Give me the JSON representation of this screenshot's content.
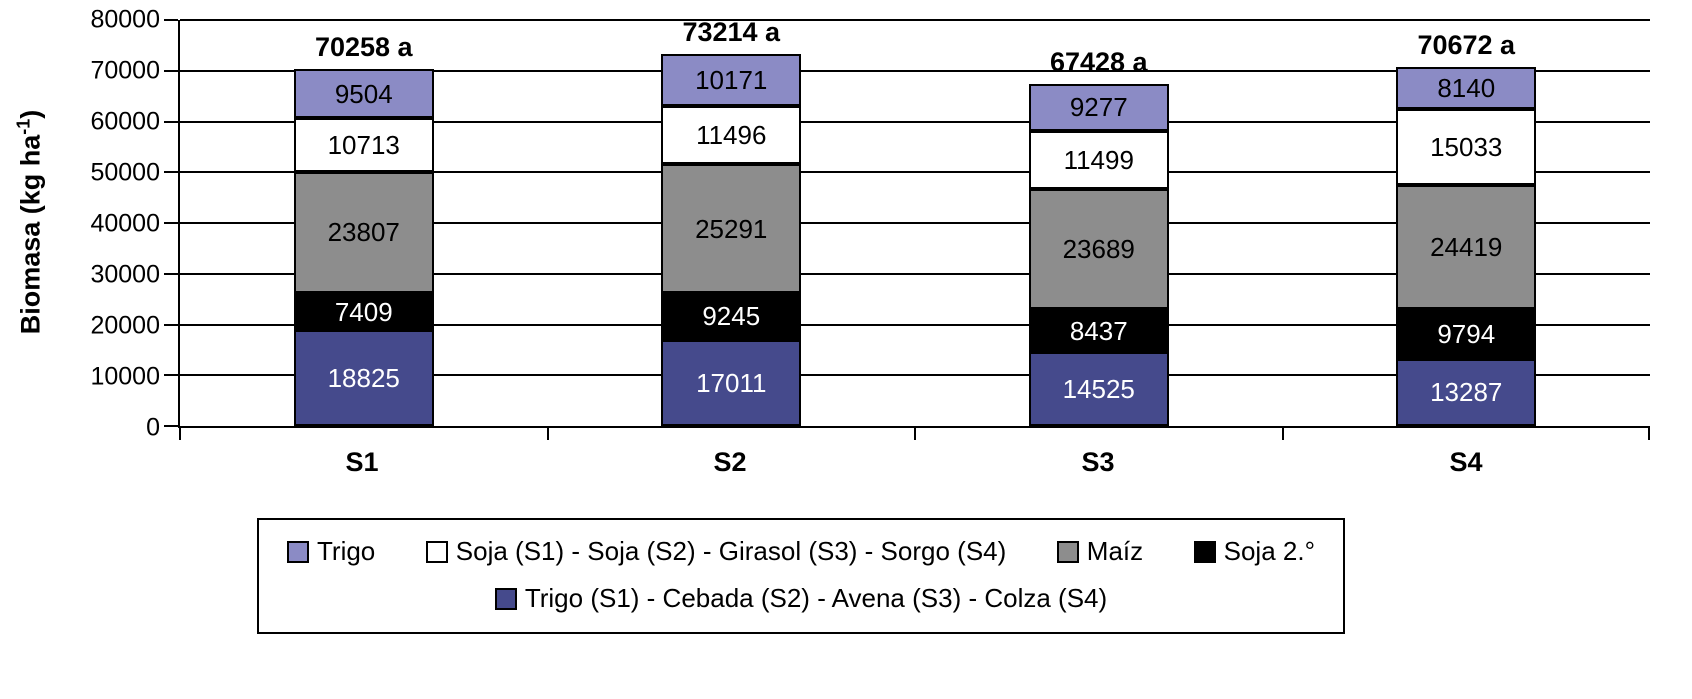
{
  "chart_data": {
    "type": "bar",
    "stacked": true,
    "title": "",
    "xlabel": "",
    "ylabel": "Biomasa (kg ha⁻¹)",
    "ylim": [
      0,
      80000
    ],
    "yticks": [
      0,
      10000,
      20000,
      30000,
      40000,
      50000,
      60000,
      70000,
      80000
    ],
    "grid": true,
    "categories": [
      "S1",
      "S2",
      "S3",
      "S4"
    ],
    "totals": [
      "70258 a",
      "73214 a",
      "67428 a",
      "70672 a"
    ],
    "series": [
      {
        "name": "Trigo (S1) - Cebada (S2) - Avena (S3) - Colza (S4)",
        "color": "#454a8c",
        "text_color": "#ffffff",
        "values": [
          18825,
          17011,
          14525,
          13287
        ]
      },
      {
        "name": "Soja 2.°",
        "color": "#000000",
        "text_color": "#ffffff",
        "values": [
          7409,
          9245,
          8437,
          9794
        ]
      },
      {
        "name": "Maíz",
        "color": "#8d8d8d",
        "text_color": "#000000",
        "values": [
          23807,
          25291,
          23689,
          24419
        ]
      },
      {
        "name": "Soja (S1) - Soja (S2) - Girasol (S3) - Sorgo (S4)",
        "color": "#ffffff",
        "text_color": "#000000",
        "values": [
          10713,
          11496,
          11499,
          15033
        ]
      },
      {
        "name": "Trigo",
        "color": "#8b8bc5",
        "text_color": "#000000",
        "values": [
          9504,
          10171,
          9277,
          8140
        ]
      }
    ],
    "legend": {
      "position": "bottom",
      "rows": [
        [
          {
            "label": "Trigo",
            "color": "#8b8bc5"
          },
          {
            "label": "Soja (S1) - Soja (S2) - Girasol (S3) - Sorgo (S4)",
            "color": "#ffffff"
          },
          {
            "label": "Maíz",
            "color": "#8d8d8d"
          },
          {
            "label": "Soja 2.°",
            "color": "#000000"
          }
        ],
        [
          {
            "label": "Trigo (S1) - Cebada (S2) - Avena (S3) - Colza (S4)",
            "color": "#454a8c"
          }
        ]
      ]
    }
  },
  "labels": {
    "ylabel_main": "Biomasa (kg ha",
    "ylabel_sup": "-1",
    "ylabel_end": ")"
  }
}
